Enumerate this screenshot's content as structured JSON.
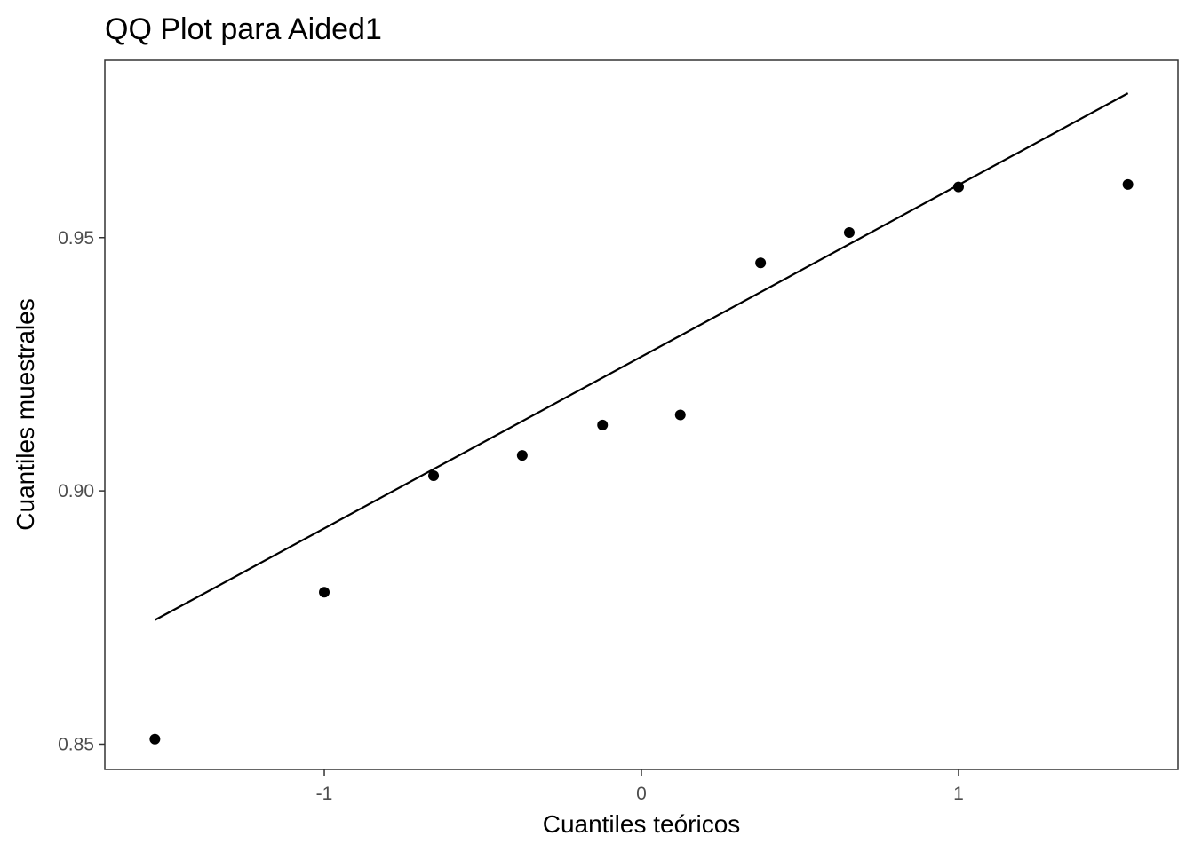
{
  "chart_data": {
    "type": "scatter",
    "title": "QQ Plot para Aided1",
    "xlabel": "Cuantiles teóricos",
    "ylabel": "Cuantiles muestrales",
    "xlim": [
      -1.692,
      1.692
    ],
    "ylim": [
      0.845,
      0.985
    ],
    "xticks": [
      -1,
      0,
      1
    ],
    "xtick_labels": [
      "-1",
      "0",
      "1"
    ],
    "yticks": [
      0.85,
      0.9,
      0.95
    ],
    "ytick_labels": [
      "0.85",
      "0.90",
      "0.95"
    ],
    "grid": false,
    "points": [
      {
        "x": -1.5341,
        "y": 0.851
      },
      {
        "x": -1.0,
        "y": 0.88
      },
      {
        "x": -0.6554,
        "y": 0.903
      },
      {
        "x": -0.3758,
        "y": 0.907
      },
      {
        "x": -0.1226,
        "y": 0.913
      },
      {
        "x": 0.1226,
        "y": 0.915
      },
      {
        "x": 0.3758,
        "y": 0.945
      },
      {
        "x": 0.6554,
        "y": 0.951
      },
      {
        "x": 1.0,
        "y": 0.96
      },
      {
        "x": 1.5341,
        "y": 0.9605
      }
    ],
    "reference_line": {
      "x": [
        -1.5341,
        1.5341
      ],
      "y": [
        0.8745,
        0.9785
      ]
    },
    "colors": {
      "points": "#000000",
      "line": "#000000",
      "panel_border": "#333333"
    }
  }
}
